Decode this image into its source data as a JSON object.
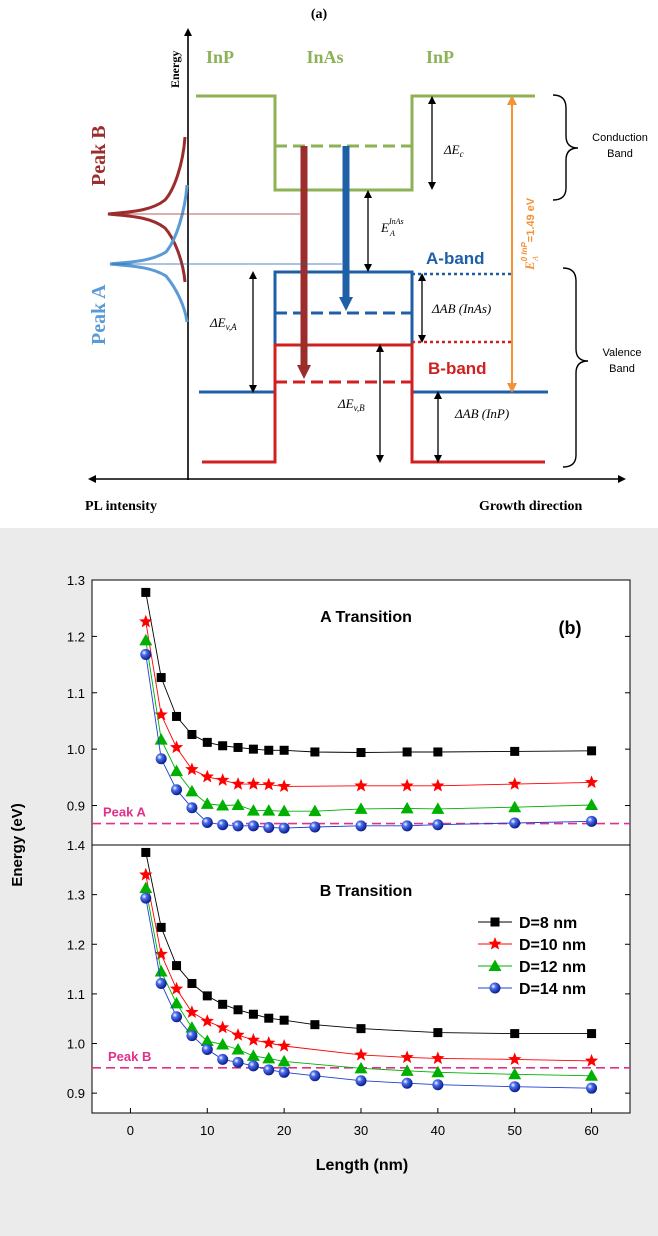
{
  "panel_a": {
    "label": "(a)",
    "energy_axis_label": "Energy",
    "pl_intensity_label": "PL intensity",
    "growth_direction_label": "Growth direction",
    "region_labels": [
      "InP",
      "InAs",
      "InP"
    ],
    "peak_b_label": "Peak B",
    "peak_a_label": "Peak A",
    "conduction_band_label": [
      "Conduction",
      "Band"
    ],
    "valence_band_label": [
      "Valence",
      "Band"
    ],
    "a_band_label": "A-band",
    "b_band_label": "B-band",
    "delta_ec": "ΔE",
    "delta_ec_sub": "c",
    "ea_inas": "E",
    "ea_inas_sub": "A",
    "ea_inas_sup": "InAs",
    "ea_inp": "E",
    "ea_inp_sub": "A",
    "ea_inp_sup": "0 InP",
    "ea_inp_value": "=1.49 eV",
    "delta_ab_inas": "ΔAB (InAs)",
    "delta_ab_inp": "ΔAB (InP)",
    "delta_eva": "ΔE",
    "delta_eva_sub": "v,A",
    "delta_evb": "ΔE",
    "delta_evb_sub": "v,B",
    "colors": {
      "conduction": "#8db256",
      "a_band": "#1f5fa8",
      "b_band": "#d02020",
      "arrow_red": "#9b2d2d",
      "arrow_blue": "#1f5fa8",
      "orange": "#f39237",
      "peak_b_text": "#9b2d2d",
      "peak_a_text": "#5b9bd5"
    }
  },
  "panel_b": {
    "label": "(b)",
    "ylabel": "Energy (eV)",
    "xlabel": "Length (nm)"
  },
  "chart_data": [
    {
      "type": "line",
      "title": "A Transition",
      "xlabel": "Length (nm)",
      "ylabel": "Energy (eV)",
      "xlim": [
        -5,
        65
      ],
      "ylim": [
        0.83,
        1.3
      ],
      "yticks": [
        0.9,
        1.0,
        1.1,
        1.2,
        1.3
      ],
      "reference_line": {
        "label": "Peak A",
        "y": 0.868,
        "color": "#e0308a"
      },
      "series": [
        {
          "name": "D=8 nm",
          "marker": "square",
          "color": "#000000",
          "x": [
            2,
            4,
            6,
            8,
            10,
            12,
            14,
            16,
            18,
            20,
            24,
            30,
            36,
            40,
            50,
            60
          ],
          "y": [
            1.278,
            1.127,
            1.058,
            1.026,
            1.012,
            1.006,
            1.003,
            1.0,
            0.998,
            0.998,
            0.995,
            0.994,
            0.995,
            0.995,
            0.996,
            0.997
          ]
        },
        {
          "name": "D=10 nm",
          "marker": "star",
          "color": "#ff0000",
          "x": [
            2,
            4,
            6,
            8,
            10,
            12,
            14,
            16,
            18,
            20,
            30,
            36,
            40,
            50,
            60
          ],
          "y": [
            1.226,
            1.061,
            1.003,
            0.964,
            0.951,
            0.945,
            0.938,
            0.938,
            0.937,
            0.934,
            0.935,
            0.935,
            0.935,
            0.938,
            0.941
          ]
        },
        {
          "name": "D=12 nm",
          "marker": "triangle",
          "color": "#00b000",
          "x": [
            2,
            4,
            6,
            8,
            10,
            12,
            14,
            16,
            18,
            20,
            24,
            30,
            36,
            40,
            50,
            60
          ],
          "y": [
            1.193,
            1.017,
            0.961,
            0.925,
            0.903,
            0.9,
            0.901,
            0.891,
            0.891,
            0.89,
            0.89,
            0.894,
            0.895,
            0.894,
            0.897,
            0.901
          ]
        },
        {
          "name": "D=14 nm",
          "marker": "sphere",
          "color": "#1f3fd0",
          "x": [
            2,
            4,
            6,
            8,
            10,
            12,
            14,
            16,
            18,
            20,
            24,
            30,
            36,
            40,
            50,
            60
          ],
          "y": [
            1.168,
            0.983,
            0.928,
            0.896,
            0.87,
            0.866,
            0.864,
            0.864,
            0.861,
            0.86,
            0.862,
            0.864,
            0.864,
            0.866,
            0.869,
            0.872
          ]
        }
      ]
    },
    {
      "type": "line",
      "title": "B Transition",
      "xlabel": "Length (nm)",
      "ylabel": "Energy (eV)",
      "xlim": [
        -5,
        65
      ],
      "ylim": [
        0.86,
        1.4
      ],
      "yticks": [
        0.9,
        1.0,
        1.1,
        1.2,
        1.3,
        1.4
      ],
      "xticks": [
        0,
        10,
        20,
        30,
        40,
        50,
        60
      ],
      "legend": "right",
      "reference_line": {
        "label": "Peak B",
        "y": 0.951,
        "color": "#e0308a"
      },
      "series": [
        {
          "name": "D=8 nm",
          "marker": "square",
          "color": "#000000",
          "x": [
            2,
            4,
            6,
            8,
            10,
            12,
            14,
            16,
            18,
            20,
            24,
            30,
            40,
            50,
            60
          ],
          "y": [
            1.385,
            1.234,
            1.157,
            1.121,
            1.096,
            1.079,
            1.068,
            1.059,
            1.051,
            1.047,
            1.038,
            1.03,
            1.022,
            1.02,
            1.02
          ]
        },
        {
          "name": "D=10 nm",
          "marker": "star",
          "color": "#ff0000",
          "x": [
            2,
            4,
            6,
            8,
            10,
            12,
            14,
            16,
            18,
            20,
            30,
            36,
            40,
            50,
            60
          ],
          "y": [
            1.34,
            1.18,
            1.11,
            1.063,
            1.045,
            1.032,
            1.017,
            1.007,
            1.001,
            0.995,
            0.977,
            0.972,
            0.97,
            0.968,
            0.965
          ]
        },
        {
          "name": "D=12 nm",
          "marker": "triangle",
          "color": "#00b000",
          "x": [
            2,
            4,
            6,
            8,
            10,
            12,
            14,
            16,
            18,
            20,
            30,
            36,
            40,
            50,
            60
          ],
          "y": [
            1.313,
            1.145,
            1.081,
            1.032,
            1.005,
            0.998,
            0.988,
            0.975,
            0.97,
            0.964,
            0.95,
            0.945,
            0.942,
            0.938,
            0.935
          ]
        },
        {
          "name": "D=14 nm",
          "marker": "sphere",
          "color": "#1f3fd0",
          "x": [
            2,
            4,
            6,
            8,
            10,
            12,
            14,
            16,
            18,
            20,
            24,
            30,
            36,
            40,
            50,
            60
          ],
          "y": [
            1.293,
            1.121,
            1.054,
            1.016,
            0.988,
            0.968,
            0.962,
            0.955,
            0.947,
            0.942,
            0.935,
            0.925,
            0.92,
            0.917,
            0.913,
            0.91
          ]
        }
      ]
    }
  ]
}
